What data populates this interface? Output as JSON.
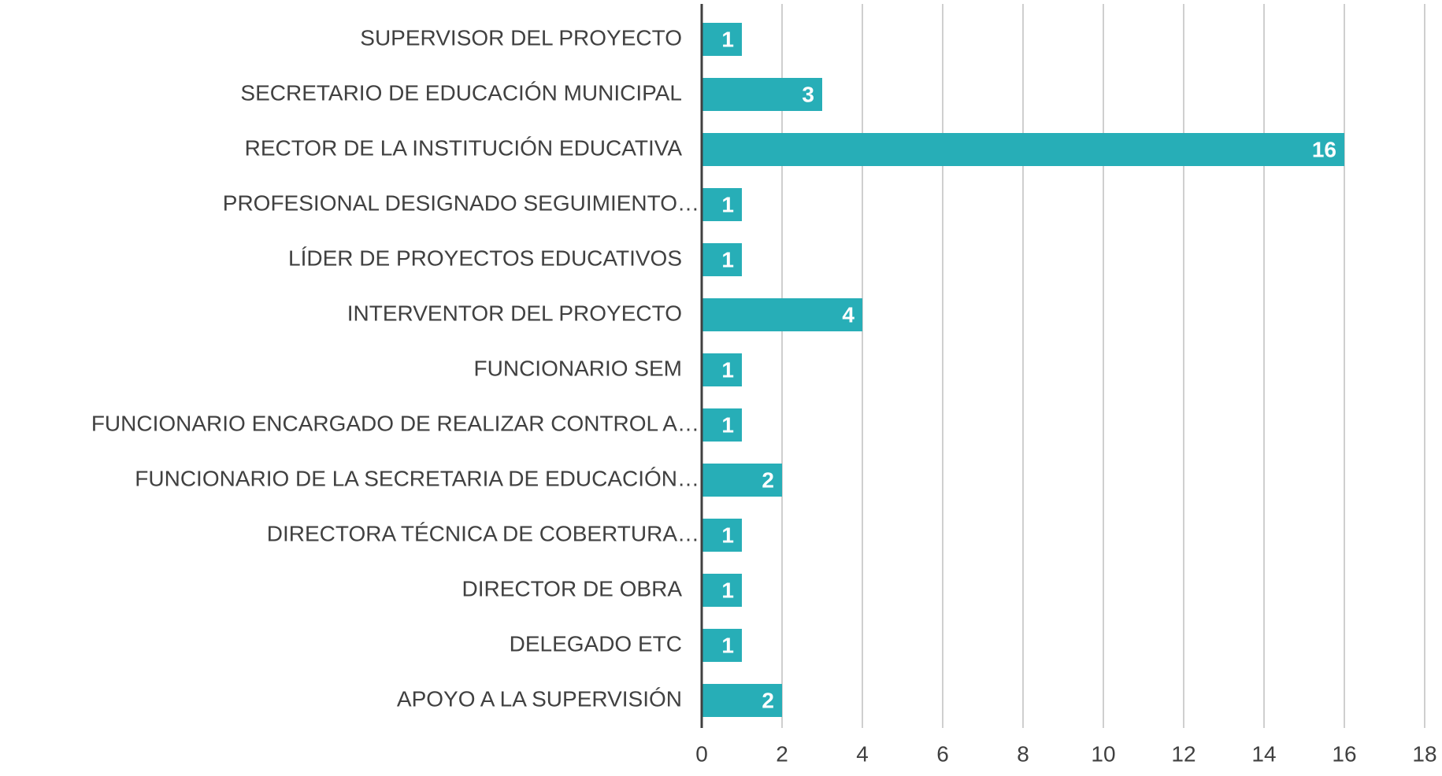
{
  "chart_data": {
    "type": "barh",
    "categories": [
      "SUPERVISOR DEL PROYECTO",
      "SECRETARIO DE EDUCACIÓN MUNICIPAL",
      "RECTOR DE LA INSTITUCIÓN EDUCATIVA",
      "PROFESIONAL DESIGNADO SEGUIMIENTO…",
      "LÍDER DE PROYECTOS EDUCATIVOS",
      "INTERVENTOR DEL PROYECTO",
      "FUNCIONARIO SEM",
      "FUNCIONARIO ENCARGADO DE REALIZAR CONTROL A…",
      "FUNCIONARIO DE LA SECRETARIA DE EDUCACIÓN…",
      "DIRECTORA TÉCNICA DE COBERTURA…",
      "DIRECTOR DE OBRA",
      "DELEGADO ETC",
      "APOYO A LA SUPERVISIÓN"
    ],
    "values": [
      1,
      3,
      16,
      1,
      1,
      4,
      1,
      1,
      2,
      1,
      1,
      1,
      2
    ],
    "color": "#27aeb7",
    "xlim": [
      0,
      18
    ],
    "xticks": [
      0,
      2,
      4,
      6,
      8,
      10,
      12,
      14,
      16,
      18
    ],
    "grid": true
  }
}
